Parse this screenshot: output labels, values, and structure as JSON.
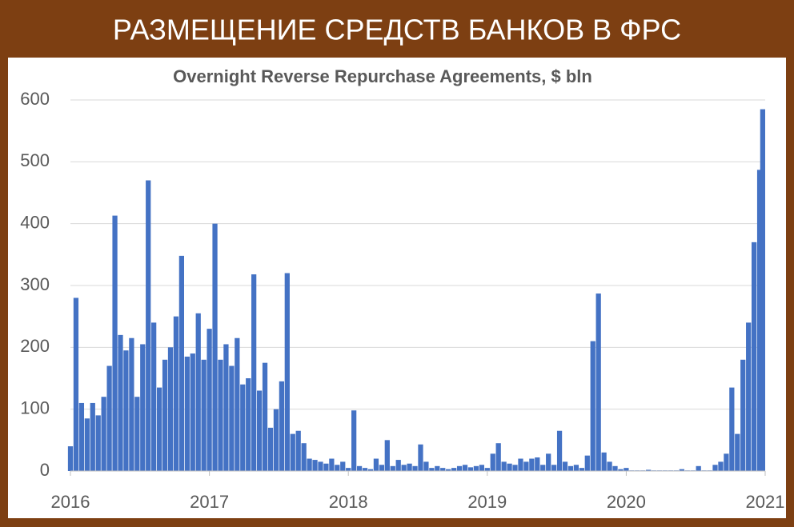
{
  "banner": "РАЗМЕЩЕНИЕ СРЕДСТВ БАНКОВ В ФРС",
  "chart_data": {
    "type": "bar",
    "title": "Overnight Reverse Repurchase Agreements, $ bln",
    "color": "#4472c4",
    "grid": true,
    "xlim": [
      2016,
      2021
    ],
    "xticks": [
      2016,
      2017,
      2018,
      2019,
      2020,
      2021
    ],
    "ylim": [
      0,
      600
    ],
    "yticks": [
      0,
      100,
      200,
      300,
      400,
      500,
      600
    ],
    "x": [
      2016,
      2016.04,
      2016.08,
      2016.12,
      2016.16,
      2016.2,
      2016.24,
      2016.28,
      2016.32,
      2016.36,
      2016.4,
      2016.44,
      2016.48,
      2016.52,
      2016.56,
      2016.6,
      2016.64,
      2016.68,
      2016.72,
      2016.76,
      2016.8,
      2016.84,
      2016.88,
      2016.92,
      2016.96,
      2017,
      2017.04,
      2017.08,
      2017.12,
      2017.16,
      2017.2,
      2017.24,
      2017.28,
      2017.32,
      2017.36,
      2017.4,
      2017.44,
      2017.48,
      2017.52,
      2017.56,
      2017.6,
      2017.64,
      2017.68,
      2017.72,
      2017.76,
      2017.8,
      2017.84,
      2017.88,
      2017.92,
      2017.96,
      2018,
      2018.04,
      2018.08,
      2018.12,
      2018.16,
      2018.2,
      2018.24,
      2018.28,
      2018.32,
      2018.36,
      2018.4,
      2018.44,
      2018.48,
      2018.52,
      2018.56,
      2018.6,
      2018.64,
      2018.68,
      2018.72,
      2018.76,
      2018.8,
      2018.84,
      2018.88,
      2018.92,
      2018.96,
      2019,
      2019.04,
      2019.08,
      2019.12,
      2019.16,
      2019.2,
      2019.24,
      2019.28,
      2019.32,
      2019.36,
      2019.4,
      2019.44,
      2019.48,
      2019.52,
      2019.56,
      2019.6,
      2019.64,
      2019.68,
      2019.72,
      2019.76,
      2019.8,
      2019.84,
      2019.88,
      2019.92,
      2019.96,
      2020,
      2020.04,
      2020.08,
      2020.12,
      2020.16,
      2020.2,
      2020.24,
      2020.28,
      2020.32,
      2020.36,
      2020.4,
      2020.44,
      2020.48,
      2020.52,
      2020.56,
      2020.6,
      2020.64,
      2020.68,
      2020.72,
      2020.76,
      2020.8,
      2020.84,
      2020.88,
      2020.92,
      2020.96,
      2021
    ],
    "values": [
      40,
      280,
      110,
      85,
      110,
      90,
      120,
      170,
      413,
      220,
      195,
      215,
      120,
      205,
      470,
      240,
      135,
      180,
      200,
      250,
      348,
      185,
      190,
      255,
      180,
      230,
      400,
      180,
      205,
      170,
      215,
      140,
      150,
      318,
      130,
      175,
      70,
      100,
      145,
      320,
      60,
      65,
      45,
      20,
      18,
      15,
      12,
      20,
      10,
      15,
      5,
      98,
      8,
      5,
      3,
      20,
      10,
      50,
      8,
      18,
      10,
      12,
      8,
      43,
      15,
      5,
      8,
      5,
      3,
      5,
      8,
      10,
      6,
      8,
      10,
      5,
      28,
      45,
      15,
      12,
      10,
      20,
      15,
      20,
      22,
      10,
      28,
      10,
      65,
      15,
      8,
      10,
      5,
      25,
      210,
      287,
      30,
      15,
      8,
      3,
      5,
      1,
      1,
      1,
      2,
      1,
      1,
      1,
      1,
      1,
      3,
      1,
      1,
      8,
      1,
      1,
      10,
      15,
      28,
      135,
      60,
      180,
      240,
      370,
      487,
      585
    ]
  }
}
